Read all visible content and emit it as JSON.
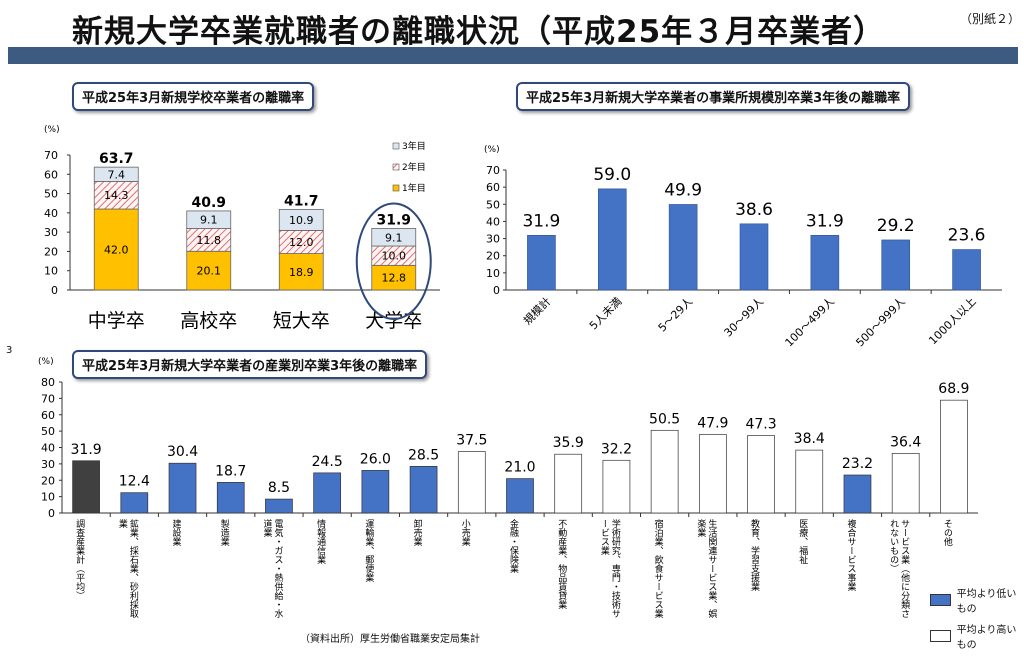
{
  "header": {
    "title": "新規大学卒業就職者の離職状況（平成25年３月卒業者）",
    "note": "（別紙２）",
    "side_number": "3"
  },
  "panels": {
    "school": "平成25年3月新規学校卒業者の離職率",
    "size": "平成25年3月新規大学卒業者の事業所規模別卒業3年後の離職率",
    "industry": "平成25年3月新規大学卒業者の産業別卒業3年後の離職率"
  },
  "source": "（資料出所）厚生労働省職業安定局集計",
  "legend": {
    "below": "平均より低いもの",
    "above": "平均より高いもの"
  },
  "colors": {
    "year1": "#ffc000",
    "year2_hatch": "#e07070",
    "year3": "#dce6f1",
    "bar_blue": "#4472c4",
    "bar_dark": "#404040",
    "bar_white": "#ffffff",
    "highlight_ellipse": "#2f4a7a"
  },
  "chart_data": [
    {
      "type": "bar",
      "stacked": true,
      "title": "平成25年3月新規学校卒業者の離職率",
      "unit": "(%)",
      "categories": [
        "中学卒",
        "高校卒",
        "短大卒",
        "大学卒"
      ],
      "series": [
        {
          "name": "1年目",
          "values": [
            42.0,
            20.1,
            18.9,
            12.8
          ]
        },
        {
          "name": "2年目",
          "values": [
            14.3,
            11.8,
            12.0,
            10.0
          ]
        },
        {
          "name": "3年目",
          "values": [
            7.4,
            9.1,
            10.9,
            9.1
          ]
        }
      ],
      "totals": [
        63.7,
        40.9,
        41.7,
        31.9
      ],
      "value_labels": {
        "1年目": [
          "42.0",
          "20.1",
          "18.9",
          "12.8"
        ],
        "2年目": [
          "14.3",
          "11.8",
          "12.0",
          "10.0"
        ],
        "3年目": [
          "7.4",
          "9.1",
          "10.9",
          "9.1"
        ],
        "totals": [
          "63.7",
          "40.9",
          "41.7",
          "31.9"
        ]
      },
      "ylim": [
        0,
        70
      ],
      "yticks": [
        "0",
        "10",
        "20",
        "30",
        "40",
        "50",
        "60",
        "70"
      ],
      "legend": "top-right",
      "highlight": "大学卒"
    },
    {
      "type": "bar",
      "title": "平成25年3月新規大学卒業者の事業所規模別卒業3年後の離職率",
      "unit": "(%)",
      "categories": [
        "規模計",
        "5人未満",
        "5～29人",
        "30～99人",
        "100～499人",
        "500～999人",
        "1000人以上"
      ],
      "values": [
        31.9,
        59.0,
        49.9,
        38.6,
        31.9,
        29.2,
        23.6
      ],
      "value_labels": [
        "31.9",
        "59.0",
        "49.9",
        "38.6",
        "31.9",
        "29.2",
        "23.6"
      ],
      "ylim": [
        0,
        70
      ],
      "yticks": [
        "0",
        "10",
        "20",
        "30",
        "40",
        "50",
        "60",
        "70"
      ]
    },
    {
      "type": "bar",
      "title": "平成25年3月新規大学卒業者の産業別卒業3年後の離職率",
      "unit": "(%)",
      "categories": [
        "調査産業計（平均）",
        "鉱業、採石業、砂利採取業",
        "建設業",
        "製造業",
        "電気・ガス・熱供給・水道業",
        "情報通信業",
        "運輸業、郵便業",
        "卸売業",
        "小売業",
        "金融・保険業",
        "不動産業、物品賃貸業",
        "学術研究、専門・技術サービス業",
        "宿泊業、飲食サービス業",
        "生活関連サービス業、娯楽業",
        "教育、学習支援業",
        "医療、福祉",
        "複合サービス事業",
        "サービス業（他に分類されないもの）",
        "その他"
      ],
      "values": [
        31.9,
        12.4,
        30.4,
        18.7,
        8.5,
        24.5,
        26.0,
        28.5,
        37.5,
        21.0,
        35.9,
        32.2,
        50.5,
        47.9,
        47.3,
        38.4,
        23.2,
        36.4,
        68.9
      ],
      "value_labels": [
        "31.9",
        "12.4",
        "30.4",
        "18.7",
        "8.5",
        "24.5",
        "26.0",
        "28.5",
        "37.5",
        "21.0",
        "35.9",
        "32.2",
        "50.5",
        "47.9",
        "47.3",
        "38.4",
        "23.2",
        "36.4",
        "68.9"
      ],
      "groups": [
        "average",
        "below",
        "below",
        "below",
        "below",
        "below",
        "below",
        "below",
        "above",
        "below",
        "above",
        "above",
        "above",
        "above",
        "above",
        "above",
        "below",
        "above",
        "above"
      ],
      "ylim": [
        0,
        80
      ],
      "yticks": [
        "0",
        "10",
        "20",
        "30",
        "40",
        "50",
        "60",
        "70",
        "80"
      ],
      "legend": "bottom-right"
    }
  ]
}
